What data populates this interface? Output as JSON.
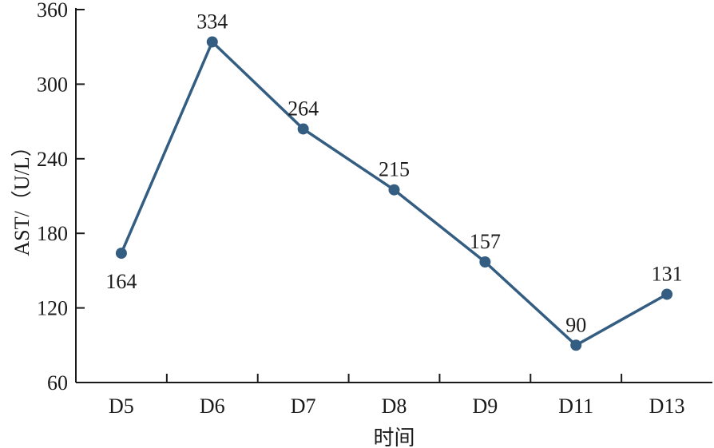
{
  "chart_data": {
    "type": "line",
    "title": "",
    "xlabel": "时间",
    "ylabel": "AST/（U/L）",
    "categories": [
      "D5",
      "D6",
      "D7",
      "D8",
      "D9",
      "D11",
      "D13"
    ],
    "series": [
      {
        "values": [
          164,
          334,
          264,
          215,
          157,
          90,
          131
        ],
        "color": "#345d82"
      }
    ],
    "ylim": [
      60,
      360
    ],
    "yticks": [
      60,
      120,
      180,
      240,
      300,
      360
    ],
    "grid": false,
    "legend": "none",
    "data_labels": true,
    "data_label_position": [
      "below",
      "above",
      "above",
      "above",
      "above",
      "above",
      "above"
    ]
  }
}
